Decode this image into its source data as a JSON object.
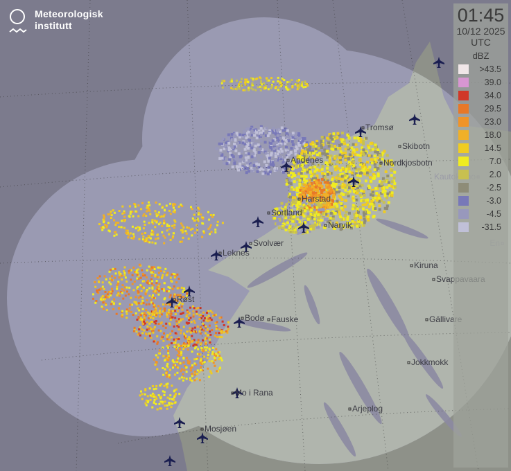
{
  "logo": {
    "line1": "Meteorologisk",
    "line2": "institutt"
  },
  "legend": {
    "time": "01:45",
    "date": "10/12 2025",
    "timezone": "UTC",
    "unit": "dBZ",
    "items": [
      {
        "value": ">43.5",
        "color": "#f0e6e8"
      },
      {
        "value": "39.0",
        "color": "#d896d2"
      },
      {
        "value": "34.0",
        "color": "#d03828"
      },
      {
        "value": "29.5",
        "color": "#e87828"
      },
      {
        "value": "23.0",
        "color": "#f09428"
      },
      {
        "value": "18.0",
        "color": "#f0b028"
      },
      {
        "value": "14.5",
        "color": "#f0cc20"
      },
      {
        "value": "7.0",
        "color": "#f0ec20"
      },
      {
        "value": "2.0",
        "color": "#c8c050"
      },
      {
        "value": "-2.5",
        "color": "#8e8c78"
      },
      {
        "value": "-3.0",
        "color": "#7878b8"
      },
      {
        "value": "-4.5",
        "color": "#9898bc"
      },
      {
        "value": "-31.5",
        "color": "#c0c0d8"
      }
    ]
  },
  "cities": [
    "Tromsø",
    "Skibotn",
    "Andenes",
    "Nordkjosbotn",
    "Harstad",
    "Sortland",
    "Narvik",
    "Svolvær",
    "Leknes",
    "Kiruna",
    "Svappavaara",
    "Røst",
    "Bodø",
    "Fauske",
    "Gällivare",
    "Jokkmokk",
    "Mo i Rana",
    "Arjeplog",
    "Mosjøen",
    "Kautokeino",
    "En"
  ]
}
